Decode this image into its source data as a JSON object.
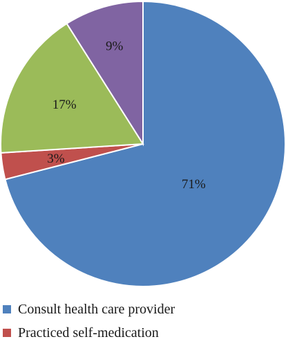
{
  "chart_data": {
    "type": "pie",
    "slices": [
      {
        "label": "Consult health care provider",
        "value": 71,
        "display": "71%",
        "color": "#4F81BD"
      },
      {
        "label": "Practiced self-medication",
        "value": 3,
        "display": "3%",
        "color": "#C0504D"
      },
      {
        "label": "",
        "value": 17,
        "display": "17%",
        "color": "#9BBB59"
      },
      {
        "label": "",
        "value": 9,
        "display": "9%",
        "color": "#8064A2"
      }
    ],
    "title": "",
    "legend": [
      "Consult health care provider",
      "Practiced self-medication"
    ],
    "legend_placement": "bottom-left"
  }
}
